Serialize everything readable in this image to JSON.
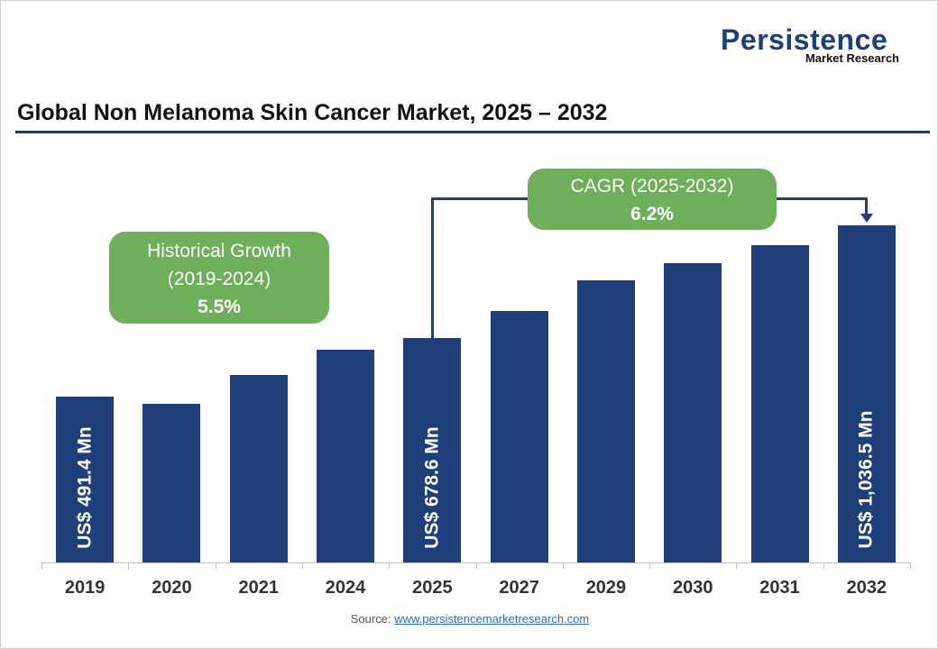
{
  "logo": {
    "name": "Persistence",
    "sub": "Market Research"
  },
  "chart_data": {
    "type": "bar",
    "title": "Global Non Melanoma Skin Cancer Market, 2025 – 2032",
    "categories": [
      "2019",
      "2020",
      "2021",
      "2024",
      "2025",
      "2027",
      "2029",
      "2030",
      "2031",
      "2032"
    ],
    "values": [
      491.4,
      470,
      560,
      642,
      678.6,
      765,
      863,
      917,
      974,
      1036.5
    ],
    "data_labels": {
      "0": "US$ 491.4 Mn",
      "4": "US$ 678.6 Mn",
      "9": "US$ 1,036.5 Mn"
    },
    "xlabel": "",
    "ylabel": "",
    "ylim": [
      -35,
      1036.5
    ],
    "color": "#1f3f7a",
    "annotations": {
      "historical": {
        "label": "Historical Growth",
        "period": "(2019-2024)",
        "value": "5.5%"
      },
      "cagr": {
        "label": "CAGR (2025-2032)",
        "value": "6.2%"
      }
    }
  },
  "source": {
    "label": "Source:",
    "link": "www.persistencemarketresearch.com"
  }
}
